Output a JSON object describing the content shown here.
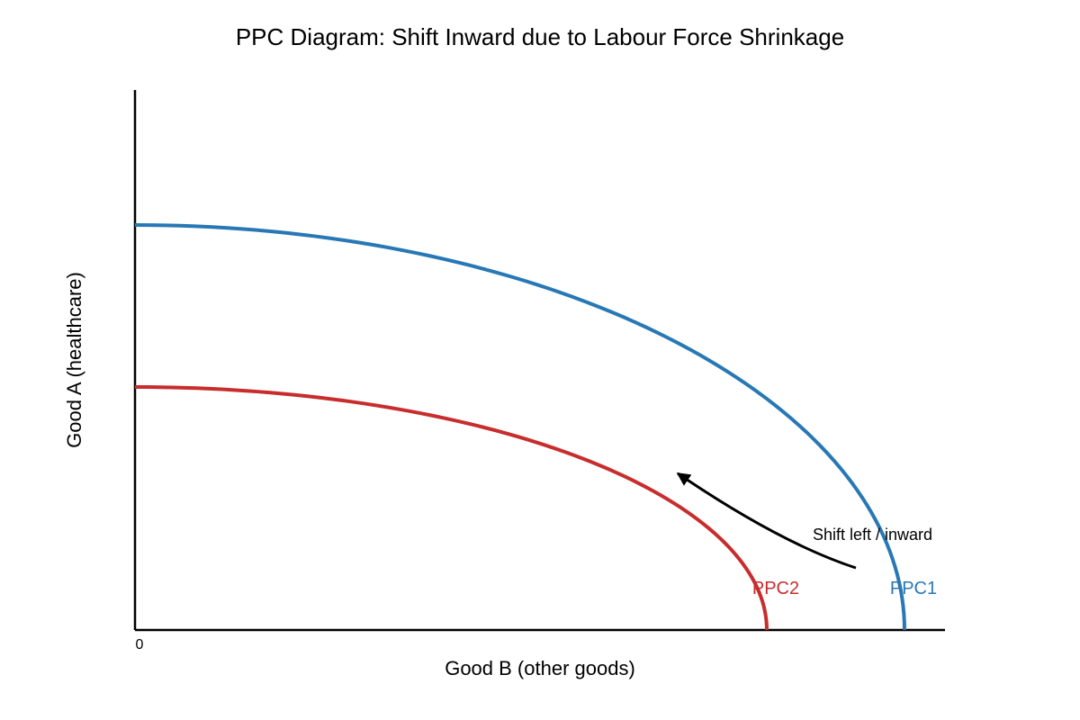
{
  "chart_data": {
    "type": "line",
    "title": "PPC Diagram: Shift Inward due to Labour Force Shrinkage",
    "xlabel": "Good B (other goods)",
    "ylabel": "Good A (healthcare)",
    "origin_label": "0",
    "grid": false,
    "xlim": [
      0,
      10
    ],
    "ylim": [
      0,
      10
    ],
    "series": [
      {
        "name": "PPC1",
        "color": "#2878b5",
        "x_intercept": 9.5,
        "y_intercept": 7.5,
        "shape": "concave-quarter-ellipse"
      },
      {
        "name": "PPC2",
        "color": "#c82d2d",
        "x_intercept": 7.8,
        "y_intercept": 4.5,
        "shape": "concave-quarter-ellipse"
      }
    ],
    "annotations": [
      {
        "text": "Shift left / inward",
        "arrow_from": [
          8.9,
          1.15
        ],
        "arrow_to": [
          6.7,
          2.9
        ],
        "color": "#000000"
      }
    ]
  }
}
